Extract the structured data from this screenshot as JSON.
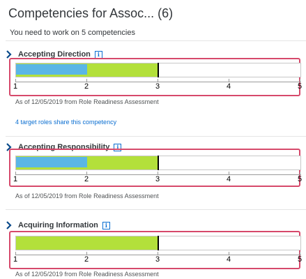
{
  "header": {
    "title": "Competencies for Assoc... (6)",
    "subtitle": "You need to work on 5 competencies"
  },
  "colors": {
    "target_bar": "#b3e03b",
    "current_bar": "#5ab6e6",
    "highlight": "#d6496b",
    "link": "#0a6ed1"
  },
  "scale": {
    "min": 1,
    "max": 5,
    "ticks": [
      "1",
      "2",
      "3",
      "4",
      "5"
    ]
  },
  "competencies": [
    {
      "name": "Accepting Direction",
      "info_icon": "info-icon",
      "current_level": 2,
      "target_level": 3,
      "as_of": "As of 12/05/2019 from Role Readiness Assessment",
      "link": "4 target roles share this competency"
    },
    {
      "name": "Accepting Responsibility",
      "info_icon": "info-icon",
      "current_level": 2,
      "target_level": 3,
      "as_of": "As of 12/05/2019 from Role Readiness Assessment"
    },
    {
      "name": "Acquiring Information",
      "info_icon": "info-icon",
      "current_level": null,
      "target_level": 3,
      "as_of": "As of 12/05/2019 from Role Readiness Assessment"
    }
  ]
}
